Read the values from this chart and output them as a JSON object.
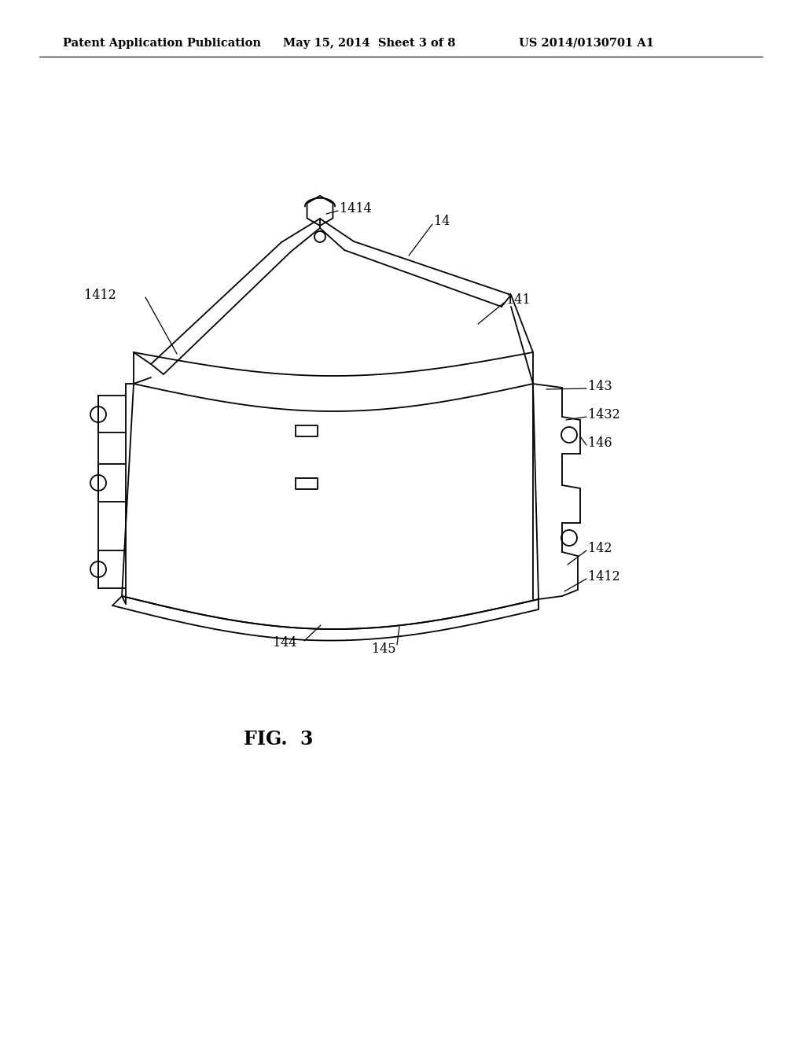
{
  "bg_color": "#ffffff",
  "line_color": "#000000",
  "header_left": "Patent Application Publication",
  "header_mid": "May 15, 2014  Sheet 3 of 8",
  "header_right": "US 2014/0130701 A1",
  "figure_title": "FIG.  3",
  "header_fontsize": 10.5,
  "label_fontsize": 11.5,
  "title_fontsize": 17,
  "lw": 1.3
}
